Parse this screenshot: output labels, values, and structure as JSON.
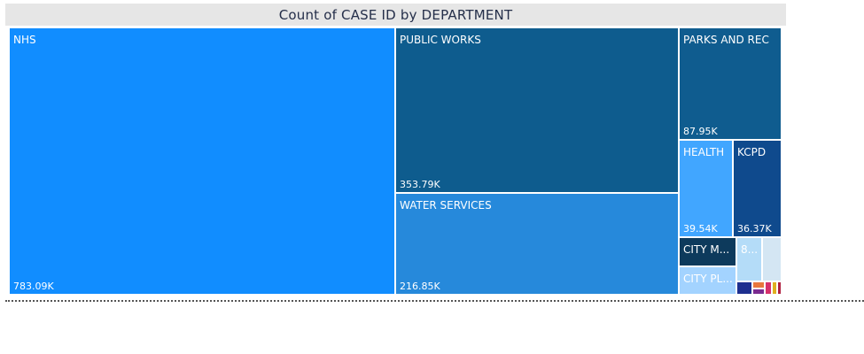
{
  "chart_data": {
    "type": "treemap",
    "title": "Count of CASE ID by DEPARTMENT",
    "categories": [
      "NHS",
      "PUBLIC WORKS",
      "WATER SERVICES",
      "PARKS AND REC",
      "HEALTH",
      "KCPD",
      "CITY M...",
      "CITY PL...",
      "8..."
    ],
    "values": [
      783090,
      353790,
      216850,
      87950,
      39540,
      36370,
      null,
      null,
      null
    ],
    "value_labels": [
      "783.09K",
      "353.79K",
      "216.85K",
      "87.95K",
      "39.54K",
      "36.37K",
      "",
      "",
      ""
    ],
    "colors": [
      "#118dff",
      "#0e5c8e",
      "#2689db",
      "#0f5c8f",
      "#41a6ff",
      "#0f4a8d",
      "#0d3a5c",
      "#a3d3ff",
      "#b4dcf8"
    ]
  },
  "tiles": [
    {
      "label": "NHS",
      "value": "783.09K",
      "color": "#118dff"
    },
    {
      "label": "PUBLIC WORKS",
      "value": "353.79K",
      "color": "#0e5c8e"
    },
    {
      "label": "WATER SERVICES",
      "value": "216.85K",
      "color": "#2689db"
    },
    {
      "label": "PARKS AND REC",
      "value": "87.95K",
      "color": "#0f5c8f"
    },
    {
      "label": "HEALTH",
      "value": "39.54K",
      "color": "#41a6ff"
    },
    {
      "label": "KCPD",
      "value": "36.37K",
      "color": "#0f4a8d"
    },
    {
      "label": "CITY M...",
      "value": "",
      "color": "#0d3a5c"
    },
    {
      "label": "CITY PL...",
      "value": "",
      "color": "#a3d3ff"
    },
    {
      "label": "8...",
      "value": "",
      "color": "#b4dcf8"
    }
  ],
  "small_tiles": [
    {
      "color": "#d4e6f3"
    },
    {
      "color": "#1e2f8f"
    },
    {
      "color": "#e8773d"
    },
    {
      "color": "#7a2a8f"
    },
    {
      "color": "#d6306b"
    },
    {
      "color": "#e0b020"
    },
    {
      "color": "#b02040"
    }
  ]
}
